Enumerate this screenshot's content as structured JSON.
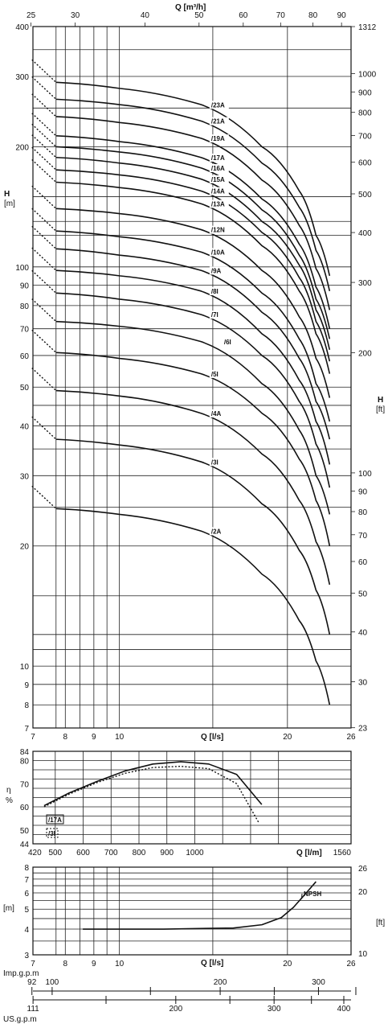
{
  "axes_text": {
    "q_m3h_label": "Q [m³/h]",
    "q_ls_label": "Q [l/s]",
    "q_lm_label": "Q [l/m]",
    "h_m_label_1": "H",
    "h_m_label_2": "[m]",
    "h_ft_label_1": "H",
    "h_ft_label_2": "[ft]",
    "eta_label": "η",
    "eta_unit": "%",
    "npsh_m": "[m]",
    "npsh_ft": "[ft]",
    "imp_label": "Imp.g.p.m",
    "us_label": "US.g.p.m",
    "npsh_curve_label": "NPSH",
    "eff_legend_1": "/17A",
    "eff_legend_2": "/3I"
  },
  "chart_data": [
    {
      "type": "line",
      "title": "",
      "xlabel": "Q [l/s]",
      "ylabel": "H [m]",
      "x_scale": "log",
      "y_scale": "log",
      "xlim": [
        7,
        26
      ],
      "ylim": [
        7,
        400
      ],
      "x_ticks": [
        "7",
        "8",
        "9",
        "10",
        "20",
        "26"
      ],
      "top_axis": {
        "label": "Q [m³/h]",
        "ticks": [
          "25",
          "30",
          "40",
          "50",
          "60",
          "70",
          "80",
          "90"
        ]
      },
      "y_ticks": [
        "400",
        "300",
        "200",
        "100",
        "90",
        "80",
        "70",
        "60",
        "50",
        "40",
        "30",
        "20",
        "10",
        "9",
        "8",
        "7"
      ],
      "right_axis": {
        "label": "H [ft]",
        "ticks": [
          "1312",
          "1000",
          "900",
          "800",
          "700",
          "600",
          "500",
          "400",
          "300",
          "200",
          "100",
          "90",
          "80",
          "70",
          "60",
          "50",
          "40",
          "30",
          "23"
        ]
      },
      "series": [
        {
          "name": "/23A",
          "points": [
            [
              7.7,
              290
            ],
            [
              10,
              280
            ],
            [
              14,
              255
            ],
            [
              18,
              200
            ],
            [
              21,
              155
            ],
            [
              22.5,
              120
            ],
            [
              23.8,
              95
            ]
          ]
        },
        {
          "name": "/21A",
          "points": [
            [
              7.7,
              263
            ],
            [
              10,
              255
            ],
            [
              14,
              232
            ],
            [
              18,
              182
            ],
            [
              21,
              141
            ],
            [
              22.5,
              110
            ],
            [
              23.8,
              87
            ]
          ]
        },
        {
          "name": "/19A",
          "points": [
            [
              7.7,
              238
            ],
            [
              10,
              230
            ],
            [
              14,
              210
            ],
            [
              18,
              165
            ],
            [
              21,
              127
            ],
            [
              22.5,
              99
            ],
            [
              23.8,
              78
            ]
          ]
        },
        {
          "name": "/17A",
          "points": [
            [
              7.7,
              213
            ],
            [
              10,
              206
            ],
            [
              14,
              188
            ],
            [
              18,
              148
            ],
            [
              21,
              114
            ],
            [
              22.5,
              89
            ],
            [
              23.8,
              70
            ]
          ]
        },
        {
          "name": "/16A",
          "points": [
            [
              7.7,
              200
            ],
            [
              10,
              194
            ],
            [
              14,
              177
            ],
            [
              18,
              139
            ],
            [
              21,
              107
            ],
            [
              22.5,
              83
            ],
            [
              23.8,
              66
            ]
          ]
        },
        {
          "name": "/15A",
          "points": [
            [
              7.7,
              188
            ],
            [
              10,
              182
            ],
            [
              14,
              166
            ],
            [
              18,
              130
            ],
            [
              21,
              101
            ],
            [
              22.5,
              78
            ],
            [
              23.8,
              62
            ]
          ]
        },
        {
          "name": "/14A",
          "points": [
            [
              7.7,
              175
            ],
            [
              10,
              170
            ],
            [
              14,
              155
            ],
            [
              18,
              122
            ],
            [
              21,
              94
            ],
            [
              22.5,
              73
            ],
            [
              23.8,
              58
            ]
          ]
        },
        {
          "name": "/13A",
          "points": [
            [
              7.7,
              163
            ],
            [
              10,
              158
            ],
            [
              14,
              144
            ],
            [
              18,
              113
            ],
            [
              21,
              87
            ],
            [
              22.5,
              68
            ],
            [
              23.8,
              54
            ]
          ]
        },
        {
          "name": "/12N",
          "points": [
            [
              7.7,
              140
            ],
            [
              10,
              136
            ],
            [
              14,
              124
            ],
            [
              18,
              98
            ],
            [
              21,
              75
            ],
            [
              22.5,
              59
            ],
            [
              23.8,
              47
            ]
          ]
        },
        {
          "name": "/10A",
          "points": [
            [
              7.7,
              123
            ],
            [
              10,
              119
            ],
            [
              14,
              109
            ],
            [
              18,
              86
            ],
            [
              21,
              66
            ],
            [
              22.5,
              51
            ],
            [
              23.8,
              41
            ]
          ]
        },
        {
          "name": "/9A",
          "points": [
            [
              7.7,
              111
            ],
            [
              10,
              107
            ],
            [
              14,
              98
            ],
            [
              18,
              77
            ],
            [
              21,
              59
            ],
            [
              22.5,
              46
            ],
            [
              23.8,
              37
            ]
          ]
        },
        {
          "name": "/8I",
          "points": [
            [
              7.7,
              98
            ],
            [
              10,
              95
            ],
            [
              14,
              87
            ],
            [
              18,
              68
            ],
            [
              21,
              52
            ],
            [
              22.5,
              41
            ],
            [
              23.8,
              32
            ]
          ]
        },
        {
          "name": "/7I",
          "points": [
            [
              7.7,
              86
            ],
            [
              10,
              83
            ],
            [
              14,
              76
            ],
            [
              18,
              60
            ],
            [
              21,
              46
            ],
            [
              22.5,
              36
            ],
            [
              23.8,
              28
            ]
          ]
        },
        {
          "name": "/6I",
          "points": [
            [
              7.7,
              73
            ],
            [
              10,
              71
            ],
            [
              14,
              65
            ],
            [
              18,
              51
            ],
            [
              21,
              39
            ],
            [
              22.5,
              30
            ],
            [
              23.8,
              24
            ]
          ]
        },
        {
          "name": "/5I",
          "points": [
            [
              7.7,
              61
            ],
            [
              10,
              59
            ],
            [
              14,
              54
            ],
            [
              18,
              43
            ],
            [
              21,
              33
            ],
            [
              22.5,
              26
            ],
            [
              23.8,
              20
            ]
          ]
        },
        {
          "name": "/4A",
          "points": [
            [
              7.7,
              49
            ],
            [
              10,
              47.5
            ],
            [
              14,
              43
            ],
            [
              18,
              34
            ],
            [
              21,
              26
            ],
            [
              22.5,
              20.5
            ],
            [
              23.8,
              16
            ]
          ]
        },
        {
          "name": "/3I",
          "points": [
            [
              7.7,
              37
            ],
            [
              10,
              35.8
            ],
            [
              14,
              32.5
            ],
            [
              18,
              25.5
            ],
            [
              21,
              19.5
            ],
            [
              22.5,
              15.5
            ],
            [
              23.8,
              12
            ]
          ]
        },
        {
          "name": "/2A",
          "points": [
            [
              7.7,
              24.8
            ],
            [
              10,
              24
            ],
            [
              14,
              21.8
            ],
            [
              18,
              17
            ],
            [
              21,
              13
            ],
            [
              22.5,
              10.3
            ],
            [
              23.8,
              8
            ]
          ]
        }
      ]
    },
    {
      "type": "line",
      "title": "",
      "xlabel": "Q [l/m]",
      "ylabel": "η %",
      "xlim": [
        420,
        1560
      ],
      "ylim": [
        44,
        84
      ],
      "x_ticks": [
        "420",
        "500",
        "600",
        "700",
        "800",
        "900",
        "1000",
        "1560"
      ],
      "y_ticks": [
        "84",
        "80",
        "70",
        "60",
        "50",
        "44"
      ],
      "series": [
        {
          "name": "/17A",
          "points": [
            [
              460,
              60.5
            ],
            [
              550,
              66
            ],
            [
              650,
              71
            ],
            [
              750,
              75.5
            ],
            [
              850,
              78.5
            ],
            [
              950,
              79.5
            ],
            [
              1050,
              78.5
            ],
            [
              1150,
              74
            ],
            [
              1240,
              61
            ]
          ]
        },
        {
          "name": "/3I",
          "points": [
            [
              460,
              60
            ],
            [
              550,
              65.5
            ],
            [
              650,
              70.5
            ],
            [
              750,
              74.5
            ],
            [
              850,
              77
            ],
            [
              950,
              77.5
            ],
            [
              1050,
              76.5
            ],
            [
              1150,
              70
            ],
            [
              1230,
              53
            ]
          ]
        }
      ]
    },
    {
      "type": "line",
      "title": "",
      "xlabel": "Q [l/s]",
      "ylabel": "NPSH [m]",
      "x_scale": "log",
      "y_scale": "log",
      "xlim": [
        7,
        26
      ],
      "ylim": [
        3,
        8
      ],
      "x_ticks": [
        "7",
        "8",
        "9",
        "10",
        "20",
        "26"
      ],
      "y_ticks": [
        "8",
        "7",
        "6",
        "5",
        "4",
        "3"
      ],
      "right_axis": {
        "label": "[ft]",
        "ticks": [
          "26",
          "20",
          "10"
        ]
      },
      "bottom_axes": [
        {
          "label": "Imp.g.p.m",
          "ticks": [
            "92",
            "100",
            "200",
            "300"
          ]
        },
        {
          "label": "US.g.p.m",
          "ticks": [
            "111",
            "200",
            "300",
            "400"
          ]
        }
      ],
      "series": [
        {
          "name": "NPSH",
          "points": [
            [
              8.6,
              4.0
            ],
            [
              12,
              4.0
            ],
            [
              16,
              4.05
            ],
            [
              18,
              4.2
            ],
            [
              19.5,
              4.55
            ],
            [
              20.5,
              5.1
            ],
            [
              21.5,
              5.9
            ],
            [
              22.5,
              6.8
            ]
          ]
        }
      ]
    }
  ]
}
